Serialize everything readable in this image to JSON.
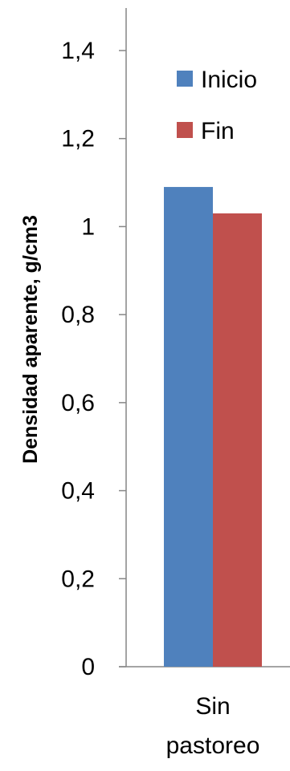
{
  "chart_data": {
    "type": "bar",
    "ylabel": "Densidad aparente, g/cm3",
    "categories": [
      "Sin pastoreo"
    ],
    "category_lines": [
      [
        "Sin",
        "pastoreo"
      ]
    ],
    "ylim": [
      0,
      1.4
    ],
    "yticks": [
      0,
      0.2,
      0.4,
      0.6,
      0.8,
      1,
      1.2,
      1.4
    ],
    "ytick_labels": [
      "0",
      "0,2",
      "0,4",
      "0,6",
      "0,8",
      "1",
      "1,2",
      "1,4"
    ],
    "grid": false,
    "legend_position": "top-right",
    "series": [
      {
        "name": "Inicio",
        "color": "#4F81BD",
        "values": [
          1.09
        ]
      },
      {
        "name": "Fin",
        "color": "#C0504D",
        "values": [
          1.03
        ]
      }
    ]
  }
}
